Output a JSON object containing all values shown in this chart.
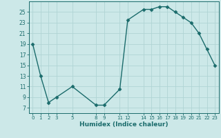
{
  "x": [
    0,
    1,
    2,
    3,
    5,
    8,
    9,
    11,
    12,
    14,
    15,
    16,
    17,
    18,
    19,
    20,
    21,
    22,
    23
  ],
  "y": [
    19,
    13,
    8,
    9,
    11,
    7.5,
    7.5,
    10.5,
    23.5,
    25.5,
    25.5,
    26,
    26,
    25,
    24,
    23,
    21,
    18,
    15
  ],
  "line_color": "#1a6b6b",
  "bg_color": "#cce8e8",
  "grid_color": "#b0d4d4",
  "xlabel": "Humidex (Indice chaleur)",
  "xlim": [
    -0.5,
    23.5
  ],
  "ylim": [
    6,
    27
  ],
  "xticks": [
    0,
    1,
    2,
    3,
    5,
    8,
    9,
    11,
    12,
    14,
    15,
    16,
    17,
    18,
    19,
    20,
    21,
    22,
    23
  ],
  "yticks": [
    7,
    9,
    11,
    13,
    15,
    17,
    19,
    21,
    23,
    25
  ],
  "markersize": 2.5,
  "linewidth": 1.0
}
